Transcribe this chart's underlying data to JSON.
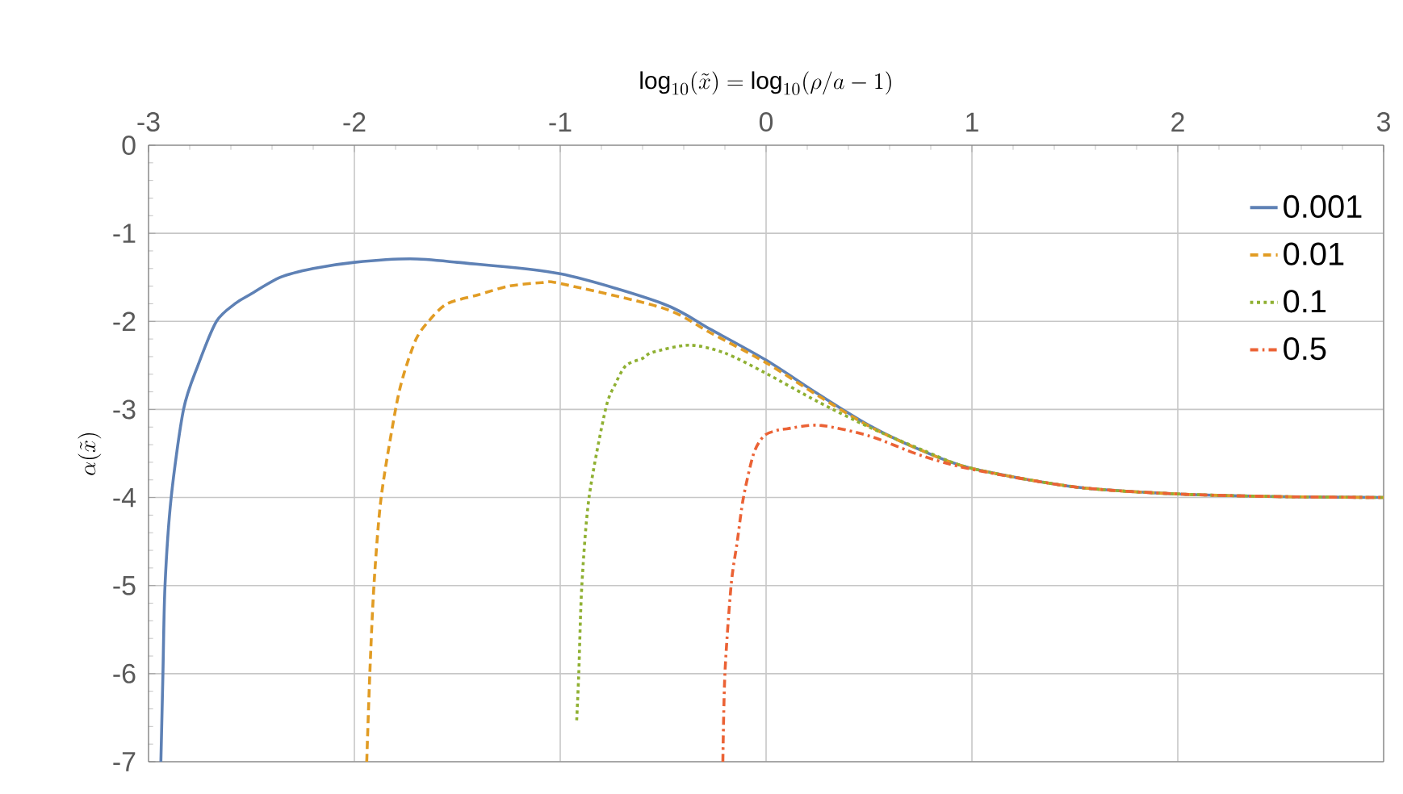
{
  "chart_data": {
    "type": "line",
    "xlabel": "\\log_{10}(\\tilde{x})=\\log_{10}(\\rho/a-1)",
    "ylabel": "\\alpha(\\tilde{x})",
    "xlim": [
      -3,
      3
    ],
    "ylim": [
      -7,
      0
    ],
    "xticks": [
      -3,
      -2,
      -1,
      0,
      1,
      2,
      3
    ],
    "yticks": [
      -7,
      -6,
      -5,
      -4,
      -3,
      -2,
      -1,
      0
    ],
    "grid": true,
    "legend": "top right",
    "marker": "none",
    "series": [
      {
        "name": "0.001",
        "color": "#5e81b5",
        "line_style": "solid",
        "x": [
          -2.94,
          -2.93,
          -2.92,
          -2.89,
          -2.83,
          -2.76,
          -2.67,
          -2.58,
          -2.51,
          -2.36,
          -2.2,
          -2.0,
          -1.73,
          -1.5,
          -1.0,
          -0.5,
          -0.27,
          0,
          0.25,
          0.5,
          0.75,
          1,
          1.5,
          2,
          2.5,
          3
        ],
        "values": [
          -7,
          -6,
          -5,
          -4,
          -3,
          -2.5,
          -2,
          -1.8,
          -1.7,
          -1.5,
          -1.4,
          -1.33,
          -1.29,
          -1.33,
          -1.46,
          -1.8,
          -2.09,
          -2.44,
          -2.82,
          -3.18,
          -3.46,
          -3.67,
          -3.88,
          -3.96,
          -3.99,
          -4.0
        ]
      },
      {
        "name": "0.01",
        "color": "#e19c24",
        "line_style": "dashed",
        "x": [
          -1.94,
          -1.925,
          -1.905,
          -1.87,
          -1.8,
          -1.76,
          -1.7,
          -1.64,
          -1.55,
          -1.4,
          -1.25,
          -1.09,
          -1.0,
          -0.5,
          -0.27,
          0,
          0.25,
          0.5,
          0.75,
          1,
          1.5,
          2,
          2.5,
          3
        ],
        "values": [
          -7,
          -6,
          -5,
          -4,
          -3,
          -2.6,
          -2.2,
          -2,
          -1.8,
          -1.7,
          -1.6,
          -1.56,
          -1.57,
          -1.85,
          -2.13,
          -2.47,
          -2.84,
          -3.19,
          -3.46,
          -3.67,
          -3.88,
          -3.96,
          -3.99,
          -4.0
        ]
      },
      {
        "name": "0.1",
        "color": "#8fb032",
        "line_style": "dotted",
        "x": [
          -0.92,
          -0.91,
          -0.895,
          -0.86,
          -0.78,
          -0.73,
          -0.68,
          -0.6,
          -0.55,
          -0.37,
          -0.2,
          0,
          0.25,
          0.5,
          0.75,
          1,
          1.5,
          2,
          2.5,
          3
        ],
        "values": [
          -6.53,
          -6,
          -5,
          -4,
          -3,
          -2.7,
          -2.5,
          -2.42,
          -2.35,
          -2.27,
          -2.36,
          -2.59,
          -2.91,
          -3.2,
          -3.45,
          -3.67,
          -3.88,
          -3.96,
          -3.99,
          -4.0
        ]
      },
      {
        "name": "0.5",
        "color": "#eb6235",
        "line_style": "dashdot",
        "x": [
          -0.21,
          -0.2,
          -0.17,
          -0.14,
          -0.11,
          -0.06,
          -0.01,
          0.05,
          0.1,
          0.26,
          0.5,
          0.75,
          1,
          1.5,
          2,
          2.5,
          3
        ],
        "values": [
          -7,
          -6,
          -5,
          -4.5,
          -4,
          -3.5,
          -3.3,
          -3.24,
          -3.22,
          -3.18,
          -3.3,
          -3.52,
          -3.68,
          -3.88,
          -3.96,
          -3.99,
          -4.0
        ]
      }
    ]
  }
}
